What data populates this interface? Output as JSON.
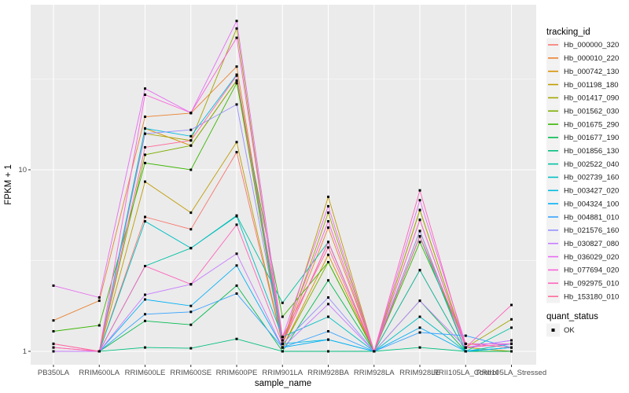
{
  "chart_data": {
    "type": "line",
    "title": "",
    "xlabel": "sample_name",
    "ylabel": "FPKM + 1",
    "y_scale": "log10",
    "y_breaks": [
      1,
      10
    ],
    "y_break_labels": [
      "1",
      "10"
    ],
    "y_minor_breaks": [
      3.162,
      31.623
    ],
    "ylim": [
      0.85,
      80
    ],
    "legend_title": "tracking_id",
    "quant_legend_title": "quant_status",
    "quant_status_label": "OK",
    "point_shape": "black-square",
    "legend_position": "right",
    "grid": true,
    "colors": {
      "panel_bg": "#EBEBEB",
      "grid": "#FFFFFF",
      "tick_label": "#4D4D4D",
      "axis_title": "#000000",
      "legend_key_bg": "#F2F2F2",
      "point": "#000000",
      "tick_mark": "#333333"
    },
    "categories": [
      "PB350LA",
      "RRIM600LA",
      "RRIM600LE",
      "RRIM600SE",
      "RRIM600PE",
      "RRIM901LA",
      "RRIM928BA",
      "RRIM928LA",
      "RRIM928LE",
      "RRII105LA_Control",
      "RRII105LA_Stressed"
    ],
    "series": [
      {
        "name": "Hb_000000_320",
        "color": "#F8766D",
        "values": [
          1.05,
          1.0,
          5.5,
          4.7,
          12.5,
          1.1,
          4.0,
          1.0,
          2.8,
          1.0,
          1.0
        ]
      },
      {
        "name": "Hb_000010_220",
        "color": "#EA8331",
        "values": [
          1.48,
          1.9,
          19.6,
          20.5,
          37.0,
          1.1,
          4.8,
          1.0,
          5.3,
          1.05,
          1.1
        ]
      },
      {
        "name": "Hb_000742_130",
        "color": "#D89000",
        "values": [
          1.0,
          1.0,
          16.9,
          13.6,
          31.0,
          1.05,
          3.4,
          1.0,
          4.6,
          1.0,
          1.0
        ]
      },
      {
        "name": "Hb_001198_180",
        "color": "#C09B00",
        "values": [
          1.0,
          1.0,
          8.6,
          5.8,
          14.2,
          1.1,
          7.1,
          1.0,
          6.0,
          1.05,
          1.0
        ]
      },
      {
        "name": "Hb_001417_090",
        "color": "#A3A500",
        "values": [
          1.0,
          1.0,
          15.8,
          14.5,
          60.0,
          1.1,
          5.8,
          1.0,
          6.0,
          1.05,
          1.5
        ]
      },
      {
        "name": "Hb_001562_030",
        "color": "#7CAE00",
        "values": [
          1.0,
          1.0,
          12.1,
          13.6,
          31.0,
          1.05,
          3.1,
          1.0,
          4.3,
          1.0,
          1.0
        ]
      },
      {
        "name": "Hb_001675_290",
        "color": "#39B600",
        "values": [
          1.29,
          1.39,
          10.9,
          10.0,
          30.0,
          1.55,
          3.1,
          1.0,
          4.0,
          1.1,
          1.1
        ]
      },
      {
        "name": "Hb_001677_190",
        "color": "#00BB4E",
        "values": [
          1.0,
          1.0,
          1.47,
          1.4,
          2.3,
          1.0,
          2.46,
          1.0,
          1.9,
          1.0,
          1.0
        ]
      },
      {
        "name": "Hb_001856_130",
        "color": "#00BF7D",
        "values": [
          1.0,
          1.0,
          1.05,
          1.04,
          1.17,
          1.0,
          1.0,
          1.0,
          1.05,
          1.0,
          1.05
        ]
      },
      {
        "name": "Hb_002522_040",
        "color": "#00C1A3",
        "values": [
          1.0,
          1.0,
          2.95,
          3.7,
          5.6,
          1.85,
          4.0,
          1.0,
          2.8,
          1.0,
          1.35
        ]
      },
      {
        "name": "Hb_002739_160",
        "color": "#00BFC4",
        "values": [
          1.0,
          1.0,
          5.2,
          3.7,
          5.55,
          1.2,
          1.55,
          1.0,
          1.55,
          1.0,
          1.1
        ]
      },
      {
        "name": "Hb_003427_020",
        "color": "#00BAE0",
        "values": [
          1.0,
          1.0,
          16.9,
          15.3,
          33.4,
          1.1,
          1.16,
          1.0,
          4.3,
          1.0,
          1.05
        ]
      },
      {
        "name": "Hb_004324_100",
        "color": "#00B0F6",
        "values": [
          1.0,
          1.0,
          1.93,
          1.78,
          2.97,
          1.05,
          1.16,
          1.0,
          1.35,
          1.0,
          1.05
        ]
      },
      {
        "name": "Hb_004881_010",
        "color": "#35A2FF",
        "values": [
          1.0,
          1.0,
          1.6,
          1.65,
          2.08,
          1.05,
          1.29,
          1.0,
          1.27,
          1.22,
          1.05
        ]
      },
      {
        "name": "Hb_021576_160",
        "color": "#9590FF",
        "values": [
          1.0,
          1.0,
          15.8,
          16.6,
          22.9,
          1.1,
          1.98,
          1.0,
          4.6,
          1.05,
          1.15
        ]
      },
      {
        "name": "Hb_030827_080",
        "color": "#C77CFF",
        "values": [
          1.0,
          1.0,
          2.05,
          2.34,
          3.45,
          1.05,
          1.82,
          1.0,
          1.9,
          1.05,
          1.15
        ]
      },
      {
        "name": "Hb_036029_020",
        "color": "#E76BF3",
        "values": [
          2.3,
          1.98,
          28.0,
          20.6,
          66.0,
          1.2,
          6.3,
          1.0,
          6.8,
          1.1,
          1.1
        ]
      },
      {
        "name": "Hb_077694_020",
        "color": "#FA62DB",
        "values": [
          1.1,
          1.0,
          25.9,
          20.6,
          53.3,
          1.15,
          5.2,
          1.0,
          5.3,
          1.05,
          1.1
        ]
      },
      {
        "name": "Hb_092975_010",
        "color": "#FF62BC",
        "values": [
          1.05,
          1.0,
          2.95,
          2.34,
          4.98,
          1.1,
          4.0,
          1.0,
          7.7,
          1.05,
          1.8
        ]
      },
      {
        "name": "Hb_153180_010",
        "color": "#FF6A98",
        "values": [
          1.1,
          1.0,
          13.3,
          14.5,
          33.0,
          1.2,
          3.73,
          1.0,
          4.3,
          1.1,
          1.05
        ]
      }
    ]
  }
}
